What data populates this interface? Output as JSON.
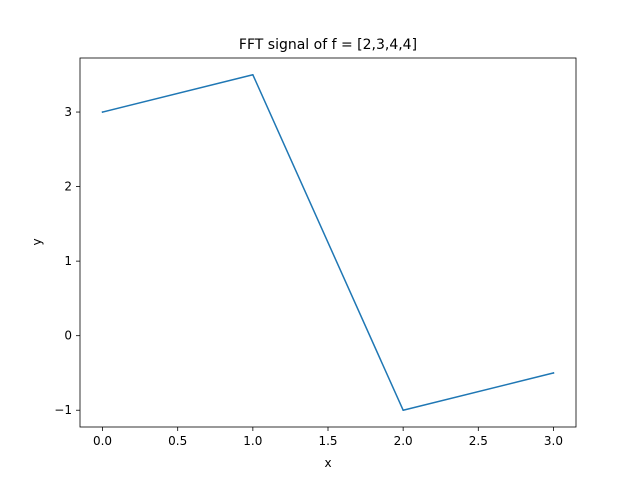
{
  "chart_data": {
    "type": "line",
    "title": "FFT signal of f = [2,3,4,4]",
    "xlabel": "x",
    "ylabel": "y",
    "x": [
      0,
      1,
      2,
      3
    ],
    "series": [
      {
        "values": [
          3,
          3.5,
          -1,
          -0.5
        ],
        "color": "#1f77b4"
      }
    ],
    "xlim": [
      -0.15,
      3.15
    ],
    "ylim": [
      -1.225,
      3.725
    ],
    "xticks": [
      0.0,
      0.5,
      1.0,
      1.5,
      2.0,
      2.5,
      3.0
    ],
    "xtick_labels": [
      "0.0",
      "0.5",
      "1.0",
      "1.5",
      "2.0",
      "2.5",
      "3.0"
    ],
    "yticks": [
      -1,
      0,
      1,
      2,
      3
    ],
    "ytick_labels": [
      "−1",
      "0",
      "1",
      "2",
      "3"
    ],
    "grid": false,
    "legend": false
  }
}
